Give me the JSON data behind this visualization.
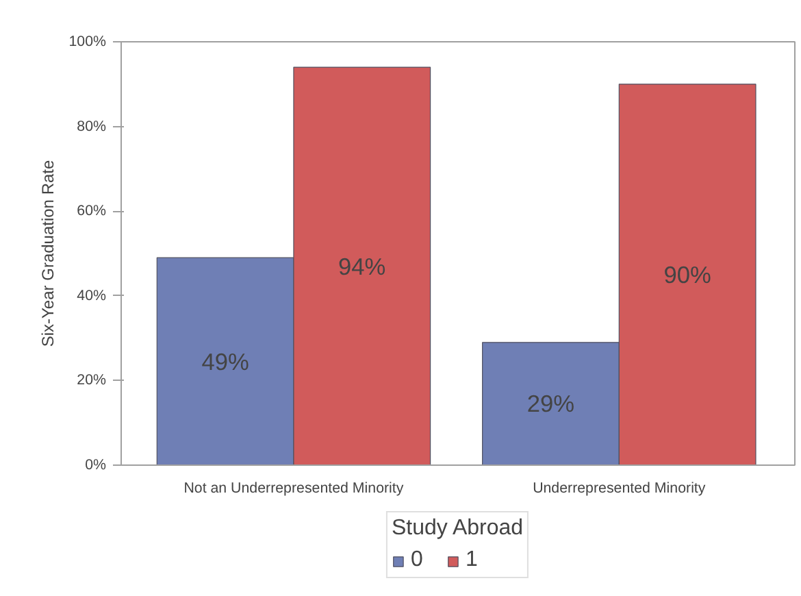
{
  "chart_data": {
    "type": "bar",
    "ylabel": "Six-Year Graduation Rate",
    "legend_title": "Study Abroad",
    "categories": [
      "Not an Underrepresented Minority",
      "Underrepresented Minority"
    ],
    "series": [
      {
        "name": "0",
        "color": "#6f7fb5",
        "values": [
          49,
          29
        ],
        "value_labels": [
          "49%",
          "29%"
        ]
      },
      {
        "name": "1",
        "color": "#d15b5b",
        "values": [
          94,
          90
        ],
        "value_labels": [
          "94%",
          "90%"
        ]
      }
    ],
    "ylim": [
      0,
      100
    ],
    "yticks": [
      {
        "value": 0,
        "label": "0%"
      },
      {
        "value": 20,
        "label": "20%"
      },
      {
        "value": 40,
        "label": "40%"
      },
      {
        "value": 60,
        "label": "60%"
      },
      {
        "value": 80,
        "label": "80%"
      },
      {
        "value": 100,
        "label": "100%"
      }
    ],
    "grid": false,
    "legend": "bottom"
  }
}
